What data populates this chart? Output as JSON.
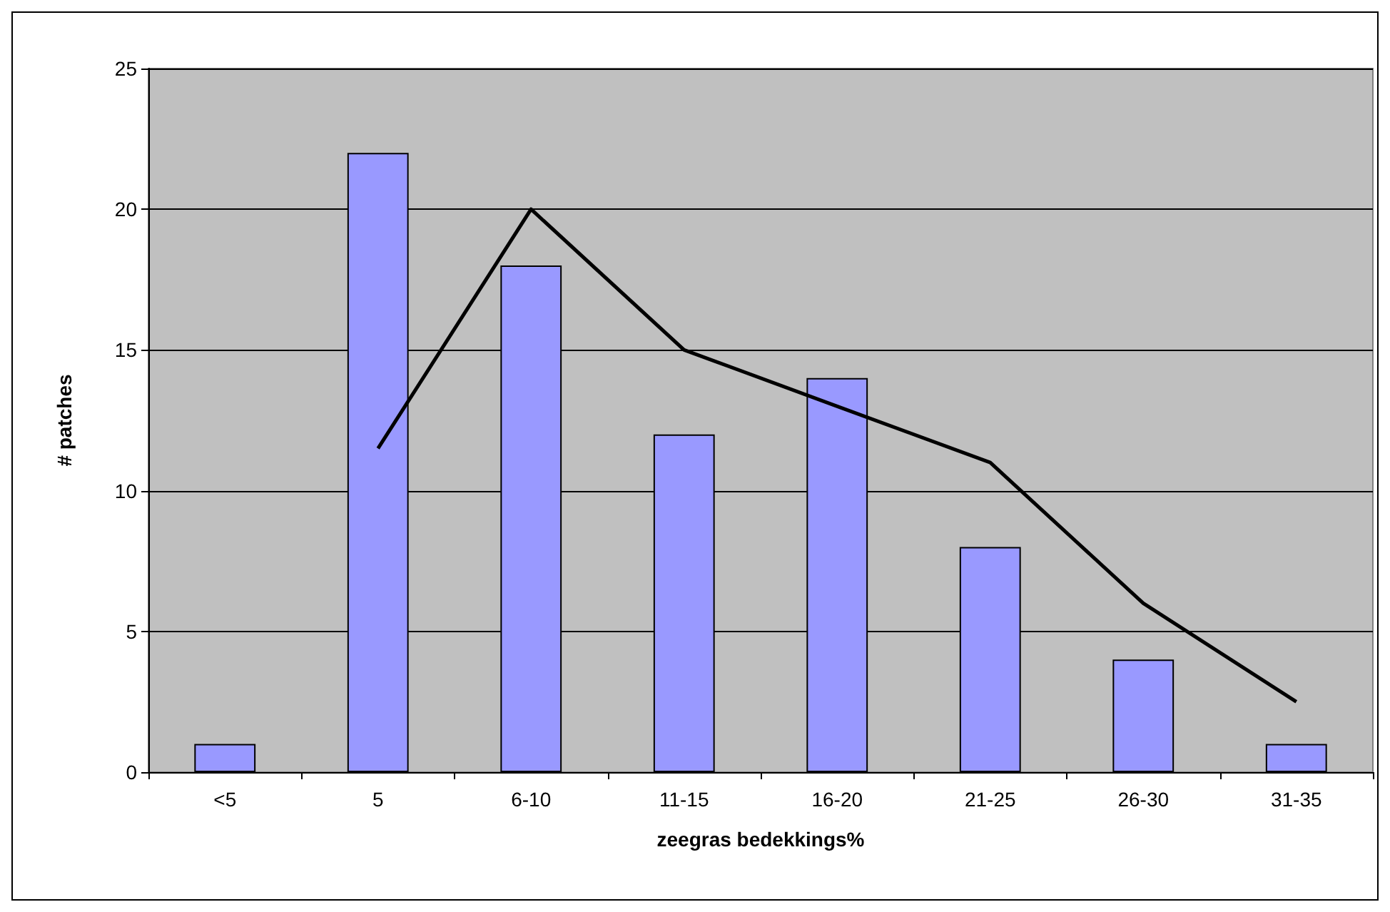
{
  "chart_data": {
    "type": "bar",
    "xlabel": "zeegras bedekkings%",
    "ylabel": "# patches",
    "categories": [
      "<5",
      "5",
      "6-10",
      "11-15",
      "16-20",
      "21-25",
      "26-30",
      "31-35"
    ],
    "series": [
      {
        "color": "#9999ff",
        "values": [
          1,
          22,
          18,
          12,
          14,
          8,
          4,
          1
        ]
      },
      {
        "type": "line",
        "color": "#000000",
        "values": [
          null,
          11.5,
          20,
          15,
          13,
          11,
          6,
          2.5
        ]
      }
    ],
    "ylim": [
      0,
      25
    ],
    "yticks": [
      0,
      5,
      10,
      15,
      20,
      25
    ],
    "grid": "y",
    "marker": "none",
    "line_style": "solid"
  }
}
